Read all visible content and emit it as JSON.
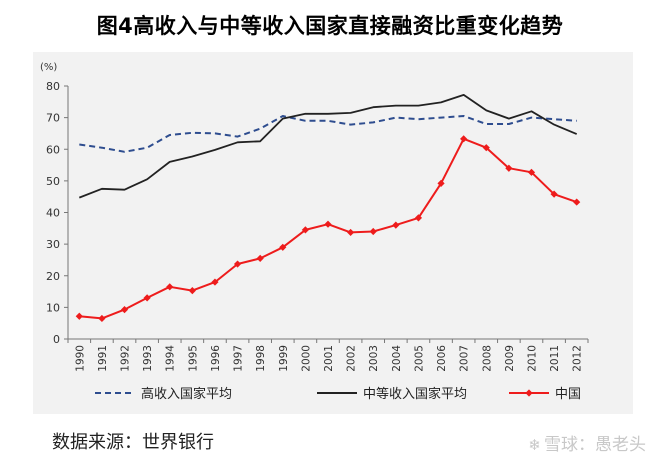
{
  "title": "图4高收入与中等收入国家直接融资比重变化趋势",
  "source_text": "数据来源：世界银行",
  "watermark": {
    "icon": "snowball-icon",
    "text": "雪球：愚老头"
  },
  "colors": {
    "high_income": "#2e4d8f",
    "middle_income": "#222222",
    "china": "#ee1c1c",
    "background": "#f2f2f2",
    "axis": "#777777"
  },
  "chart_data": {
    "type": "line",
    "title": "图4高收入与中等收入国家直接融资比重变化趋势",
    "ylabel": "(%)",
    "xlabel": "",
    "ylim": [
      0,
      80
    ],
    "yticks": [
      0,
      10,
      20,
      30,
      40,
      50,
      60,
      70,
      80
    ],
    "grid": false,
    "legend_position": "bottom",
    "x": [
      "1990",
      "1991",
      "1992",
      "1993",
      "1994",
      "1995",
      "1996",
      "1997",
      "1998",
      "1999",
      "2000",
      "2001",
      "2002",
      "2003",
      "2004",
      "2005",
      "2006",
      "2007",
      "2008",
      "2009",
      "2010",
      "2011",
      "2012"
    ],
    "series": [
      {
        "name": "高收入国家平均",
        "style": "dashed",
        "color": "#2e4d8f",
        "values": [
          61.5,
          60.5,
          59.2,
          60.5,
          64.5,
          65.2,
          65,
          64,
          66.5,
          70.5,
          69,
          69,
          67.8,
          68.5,
          70,
          69.5,
          70,
          70.5,
          68,
          68,
          70,
          69.5,
          69
        ]
      },
      {
        "name": "中等收入国家平均",
        "style": "solid",
        "color": "#222222",
        "values": [
          44.7,
          47.5,
          47.2,
          50.5,
          56,
          57.7,
          59.8,
          62.2,
          62.5,
          69.7,
          71.2,
          71.2,
          71.5,
          73.3,
          73.8,
          73.8,
          74.8,
          77.2,
          72.3,
          69.7,
          72,
          67.8,
          64.8
        ]
      },
      {
        "name": "中国",
        "style": "solid-diamond",
        "color": "#ee1c1c",
        "values": [
          7.2,
          6.5,
          9.3,
          13,
          16.5,
          15.3,
          18,
          23.7,
          25.5,
          29,
          34.5,
          36.3,
          33.7,
          34,
          36,
          38.3,
          49.2,
          63.3,
          60.5,
          54,
          52.7,
          45.8,
          43.3
        ]
      }
    ]
  }
}
